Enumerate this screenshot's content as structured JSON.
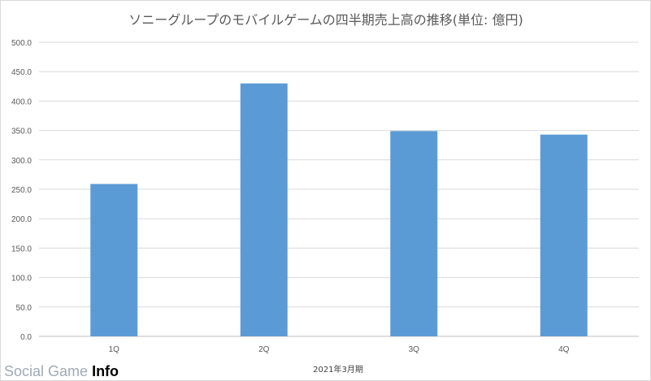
{
  "chart_data": {
    "type": "bar",
    "title": "ソニーグループのモバイルゲームの四半期売上高の推移(単位: 億円)",
    "xlabel": "2021年3月期",
    "ylabel": "",
    "categories": [
      "1Q",
      "2Q",
      "3Q",
      "4Q"
    ],
    "values": [
      259,
      430,
      349,
      343
    ],
    "ylim": [
      0,
      500
    ],
    "y_ticks": [
      "0.0",
      "50.0",
      "100.0",
      "150.0",
      "200.0",
      "250.0",
      "300.0",
      "350.0",
      "400.0",
      "450.0",
      "500.0"
    ],
    "grid": true,
    "legend": "none",
    "bar_color": "#5b9bd5"
  },
  "watermark": {
    "text_light": "Social Game",
    "text_bold": "Info"
  }
}
